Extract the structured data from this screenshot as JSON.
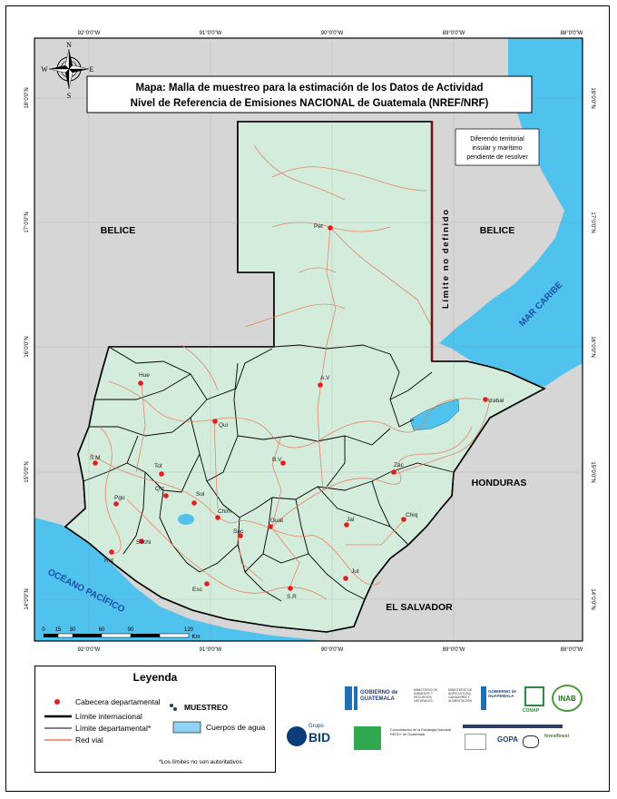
{
  "map_title": {
    "line1": "Mapa: Malla de muestreo para la estimación de los Datos de Actividad",
    "line2": "Nivel de Referencia de Emisiones NACIONAL de Guatemala (NREF/NRF)"
  },
  "compass": {
    "n": "N",
    "s": "S",
    "e": "E",
    "w": "W"
  },
  "lon_labels": [
    "92°0'0\"W",
    "91°0'0\"W",
    "90°0'0\"W",
    "89°0'0\"W",
    "88°0'0\"W"
  ],
  "lat_labels": [
    "18°0'0\"N",
    "17°0'0\"N",
    "16°0'0\"N",
    "15°0'0\"N",
    "14°0'0\"N"
  ],
  "countries": {
    "belice_west": "BELICE",
    "belice_east": "BELICE",
    "honduras": "HONDURAS",
    "el_salvador": "EL SALVADOR"
  },
  "water_labels": {
    "caribe": "MAR CARIBE",
    "pacifico": "OCÉANO PACÍFICO"
  },
  "limite_label": "Límite no definido",
  "diferendo": [
    "Diferendo territorial",
    "insular y marítimo",
    "pendiente de resolver"
  ],
  "cabeceras": [
    "Pet",
    "A.V",
    "Hue",
    "Qui",
    "B.V",
    "Izabal",
    "Zac",
    "S.M",
    "Tot",
    "Pgo",
    "Qtz",
    "Sol",
    "Chim",
    "Guat",
    "Jal",
    "Chiq",
    "Suchi",
    "Ret",
    "Esc",
    "Sac",
    "S.R",
    "Jut"
  ],
  "scale": {
    "ticks": [
      "0",
      "15",
      "30",
      "60",
      "90",
      "120"
    ],
    "unit": "Km"
  },
  "legend": {
    "title": "Leyenda",
    "cabecera": "Cabecera departamental",
    "muestreo": "MUESTREO",
    "limite_internacional": "Límite internacional",
    "limite_departamental": "Límite departamental*",
    "cuerpos_agua": "Cuerpos de agua",
    "red_vial": "Red vial",
    "note": "*Los límites no son autoritativos"
  },
  "logos": {
    "gob1": "GOBIERNO de GUATEMALA",
    "marn": "MINISTERIO DE AMBIENTE Y RECURSOS NATURALES",
    "maga": "MINISTERIO DE AGRICULTURA, GANADERÍA Y ALIMENTACIÓN",
    "gob2": "GOBIERNO de GUATEMALA",
    "conap": "CONAP",
    "inab": "INAB",
    "bid": "BID",
    "grupo": "Grupo",
    "redd": "Consolidación de la Estrategia Nacional REDD+ de Guatemala",
    "gopa": "GOPA",
    "forest": "forestfinest"
  },
  "colors": {
    "land_gt": "#d3ecdb",
    "land_other": "#d6d6d6",
    "water": "#50c2ee",
    "dots": "#1d3f5a",
    "roads": "#ea7a55",
    "cabecera": "#e31c1c",
    "limit_line": "#6a1a1a"
  }
}
